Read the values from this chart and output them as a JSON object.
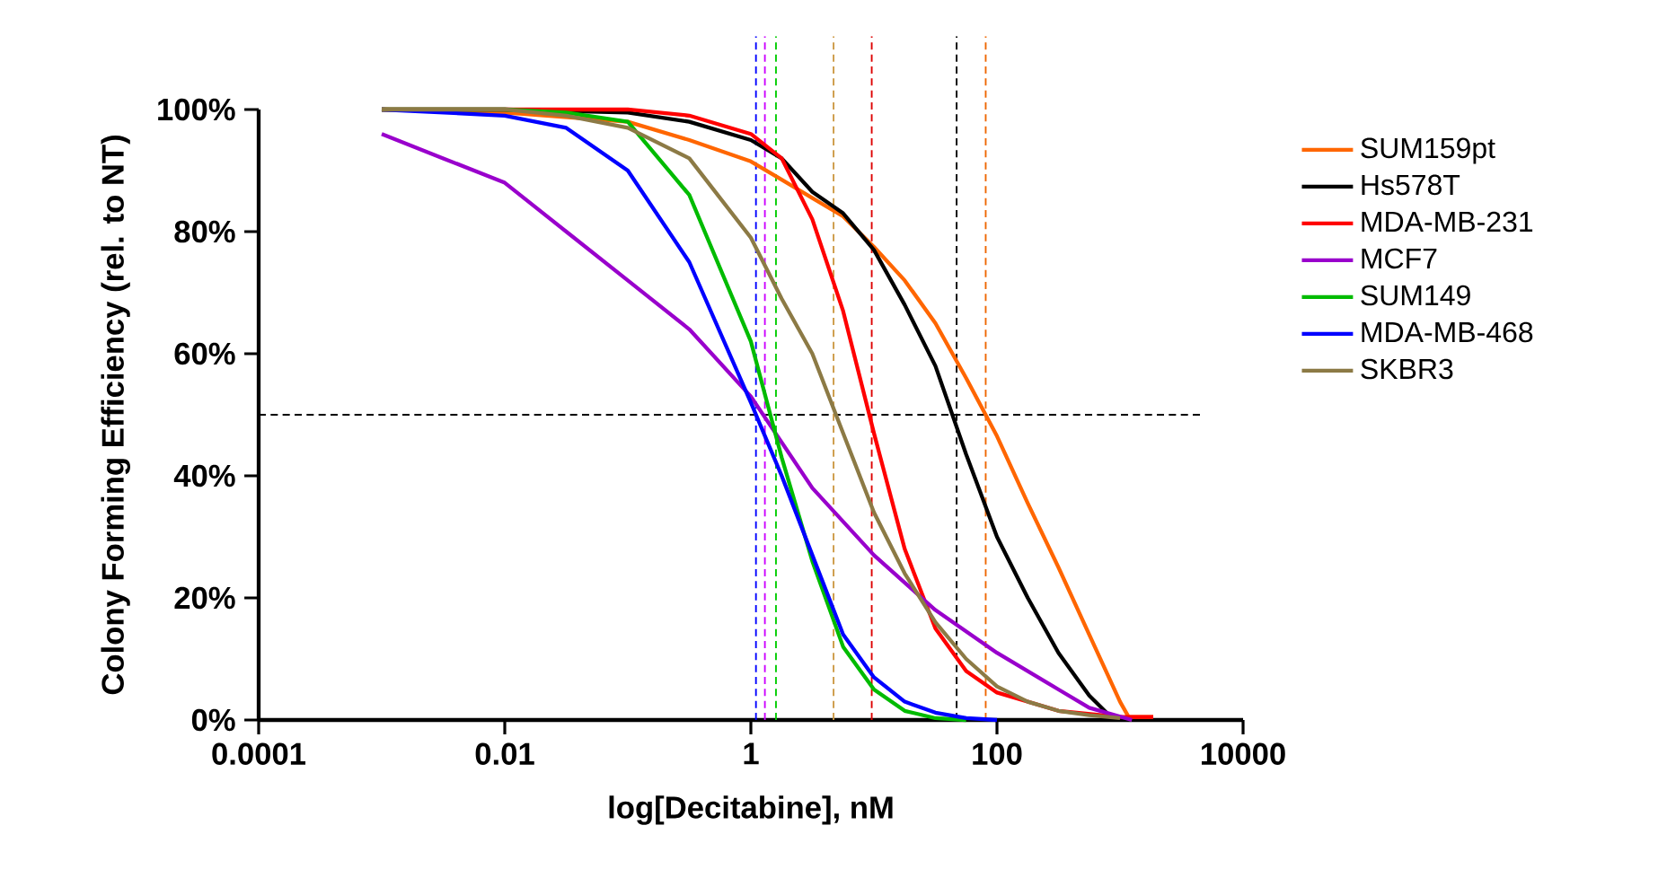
{
  "chart_data": {
    "type": "line",
    "xlabel": "log[Decitabine], nM",
    "ylabel": "Colony Forming Efficiency (rel. to NT)",
    "log": "x",
    "legend": "right",
    "xlim": [
      0.0001,
      10000
    ],
    "xticks": [
      0.0001,
      0.01,
      1,
      100,
      10000
    ],
    "ylim": [
      0,
      100
    ],
    "yticks": [
      {
        "value": 0,
        "label": "0%"
      },
      {
        "value": 20,
        "label": "20%"
      },
      {
        "value": 40,
        "label": "40%"
      },
      {
        "value": 60,
        "label": "60%"
      },
      {
        "value": 80,
        "label": "80%"
      },
      {
        "value": 100,
        "label": "100%"
      }
    ],
    "series": [
      {
        "name": "SUM159pt",
        "color": "#ff6600",
        "x": [
          0.001,
          0.01,
          0.1,
          0.316,
          1,
          1.78,
          3.16,
          5.62,
          10,
          17.8,
          31.6,
          56.2,
          100,
          178,
          316,
          562,
          1000,
          1175,
          1862
        ],
        "values": [
          100,
          99.5,
          98,
          95,
          91.5,
          88.5,
          85.5,
          82.5,
          77.5,
          72,
          65,
          56,
          46.5,
          35.5,
          25,
          14,
          3,
          0.5,
          0.5
        ]
      },
      {
        "name": "Hs578T",
        "color": "#000000",
        "x": [
          0.001,
          0.01,
          0.1,
          0.316,
          1,
          1.78,
          3.16,
          5.62,
          10,
          17.8,
          31.6,
          56.2,
          100,
          178,
          316,
          562,
          891
        ],
        "values": [
          100,
          100,
          99.5,
          98,
          95,
          92,
          86.5,
          83,
          77,
          68,
          58,
          43.5,
          30,
          20,
          11,
          4,
          0
        ]
      },
      {
        "name": "MDA-MB-231",
        "color": "#ff0000",
        "x": [
          0.001,
          0.01,
          0.1,
          0.316,
          1,
          1.78,
          3.16,
          5.62,
          10,
          17.8,
          31.6,
          56.2,
          100,
          316,
          1000,
          1862
        ],
        "values": [
          100,
          100,
          100,
          99,
          96,
          92,
          82,
          67,
          47,
          28,
          15,
          8,
          4.5,
          1.5,
          0.5,
          0.5
        ]
      },
      {
        "name": "MCF7",
        "color": "#9900cc",
        "x": [
          0.001,
          0.00316,
          0.01,
          0.0316,
          0.1,
          0.316,
          1,
          3.16,
          10,
          31.6,
          100,
          316,
          562,
          1250
        ],
        "values": [
          96,
          92,
          88,
          80,
          72,
          64,
          53,
          38,
          27,
          18,
          11,
          5,
          2,
          0
        ]
      },
      {
        "name": "SUM149",
        "color": "#00bb00",
        "x": [
          0.001,
          0.01,
          0.0316,
          0.1,
          0.316,
          1,
          1.78,
          3.16,
          5.62,
          10,
          17.8,
          31.6,
          56.2
        ],
        "values": [
          100,
          100,
          99.5,
          98,
          86,
          62,
          43,
          26,
          12,
          5,
          1.5,
          0.3,
          0
        ]
      },
      {
        "name": "MDA-MB-468",
        "color": "#0000ff",
        "x": [
          0.001,
          0.01,
          0.0316,
          0.1,
          0.316,
          1,
          1.78,
          3.16,
          5.62,
          10,
          17.8,
          31.6,
          56.2,
          100
        ],
        "values": [
          100,
          99,
          97,
          90,
          75,
          52,
          40,
          27,
          14,
          7,
          3,
          1.2,
          0.3,
          0
        ]
      },
      {
        "name": "SKBR3",
        "color": "#8c7a45",
        "x": [
          0.001,
          0.01,
          0.0316,
          0.1,
          0.316,
          1,
          1.78,
          3.16,
          5.62,
          10,
          17.8,
          31.6,
          56.2,
          100,
          178,
          316,
          562,
          1000
        ],
        "values": [
          100,
          100,
          99,
          97,
          92,
          79,
          69,
          60,
          47,
          34,
          24,
          16,
          10,
          5.5,
          3,
          1.5,
          0.8,
          0.3
        ]
      }
    ],
    "ref_lines": [
      {
        "axis": "y",
        "value": 50,
        "color": "#000000",
        "line_style": "dashed"
      },
      {
        "axis": "x",
        "value": 1.1,
        "color": "#0000ff",
        "line_style": "dashed"
      },
      {
        "axis": "x",
        "value": 1.3,
        "color": "#cc00ff",
        "line_style": "dashed"
      },
      {
        "axis": "x",
        "value": 1.6,
        "color": "#00cc00",
        "line_style": "dashed"
      },
      {
        "axis": "x",
        "value": 4.7,
        "color": "#cc9944",
        "line_style": "dashed"
      },
      {
        "axis": "x",
        "value": 9.6,
        "color": "#dd0000",
        "line_style": "dashed"
      },
      {
        "axis": "x",
        "value": 47,
        "color": "#000000",
        "line_style": "dashed"
      },
      {
        "axis": "x",
        "value": 81,
        "color": "#ee6600",
        "line_style": "dashed"
      }
    ]
  }
}
